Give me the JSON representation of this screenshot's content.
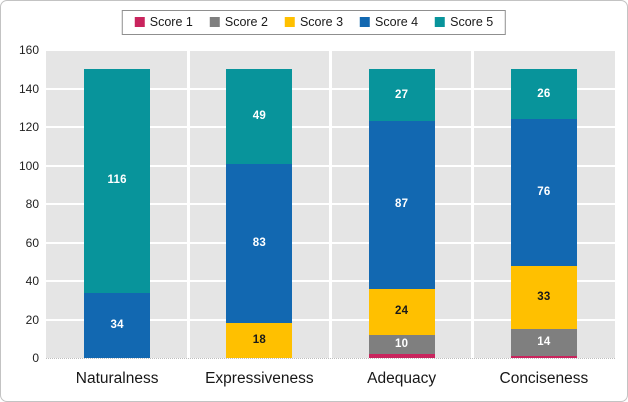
{
  "chart_data": {
    "type": "bar",
    "stacked": true,
    "title": "",
    "xlabel": "",
    "ylabel": "",
    "categories": [
      "Naturalness",
      "Expressiveness",
      "Adequacy",
      "Conciseness"
    ],
    "series": [
      {
        "name": "Score 1",
        "color": "#c9245d",
        "label_color": "#ffffff",
        "values": [
          0,
          0,
          2,
          1
        ]
      },
      {
        "name": "Score 2",
        "color": "#7f7f7f",
        "label_color": "#ffffff",
        "values": [
          0,
          0,
          10,
          14
        ]
      },
      {
        "name": "Score 3",
        "color": "#ffc000",
        "label_color": "#1a1a1a",
        "values": [
          0,
          18,
          24,
          33
        ]
      },
      {
        "name": "Score 4",
        "color": "#1268b1",
        "label_color": "#ffffff",
        "values": [
          34,
          83,
          87,
          76
        ]
      },
      {
        "name": "Score 5",
        "color": "#08949b",
        "label_color": "#ffffff",
        "values": [
          116,
          49,
          27,
          26
        ]
      }
    ],
    "ylim": [
      0,
      160
    ],
    "yticks": [
      0,
      20,
      40,
      60,
      80,
      100,
      120,
      140,
      160
    ],
    "grid": true,
    "legend_position": "top",
    "plot_background": "#e5e5e5",
    "gridline_color": "#ffffff"
  }
}
